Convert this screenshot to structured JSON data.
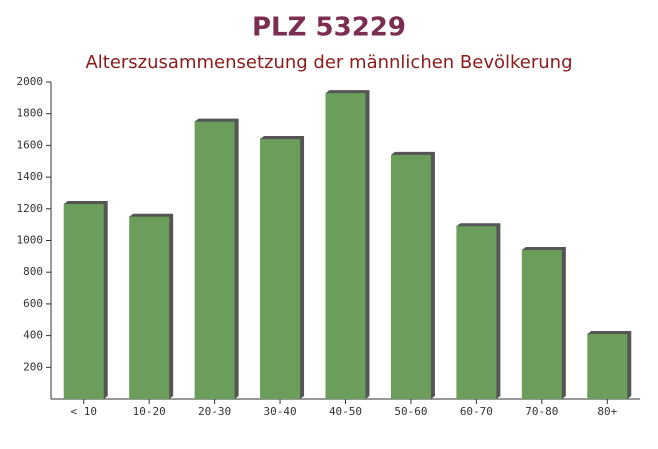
{
  "chart_data": {
    "type": "bar",
    "title": "PLZ 53229",
    "subtitle": "Alterszusammensetzung der männlichen Bevölkerung",
    "categories": [
      "< 10",
      "10-20",
      "20-30",
      "30-40",
      "40-50",
      "50-60",
      "60-70",
      "70-80",
      "80+"
    ],
    "values": [
      1230,
      1150,
      1750,
      1640,
      1930,
      1540,
      1090,
      940,
      410
    ],
    "color": "#6a9e5a",
    "ylim": [
      0,
      2000
    ],
    "yticks": [
      200,
      400,
      600,
      800,
      1000,
      1200,
      1400,
      1600,
      1800,
      2000
    ],
    "grid": false
  }
}
